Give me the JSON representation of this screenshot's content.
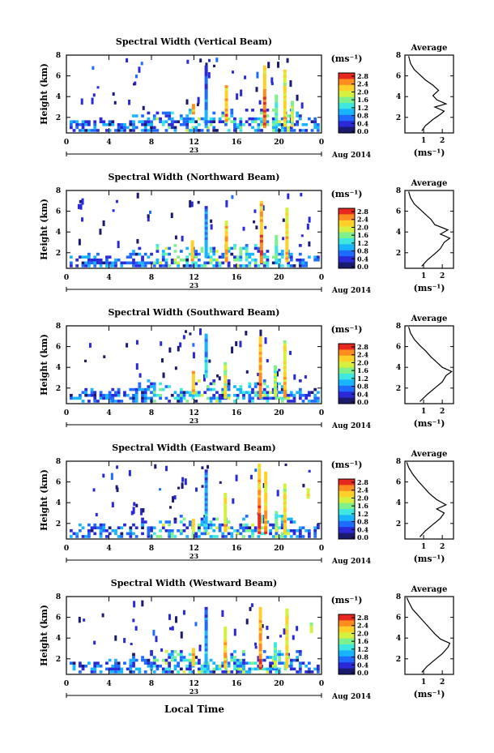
{
  "figure": {
    "xlabel": "Local Time",
    "date_label": "Aug 2014",
    "day_label": "23",
    "unit_label": "(ms⁻¹)",
    "average_title": "Average"
  },
  "colorbar": {
    "ticks": [
      "2.8",
      "2.4",
      "2.0",
      "1.6",
      "1.2",
      "0.8",
      "0.4",
      "0.0"
    ],
    "colors": [
      "#1a1a6e",
      "#2a2ad8",
      "#1e6cff",
      "#18b4ff",
      "#3ee8e0",
      "#7ef08c",
      "#d6f040",
      "#ffd028",
      "#ff8c1e",
      "#e8281e"
    ]
  },
  "chart_data": [
    {
      "type": "heatmap",
      "title": "Spectral Width (Vertical Beam)",
      "xlabel": "Local Time",
      "ylabel": "Height (km)",
      "xlim": [
        0,
        24
      ],
      "ylim": [
        0.5,
        8
      ],
      "xticks": [
        "0",
        "4",
        "8",
        "12",
        "16",
        "20",
        "0"
      ],
      "yticks": [
        "2",
        "4",
        "6",
        "8"
      ],
      "colorbar_label": "(ms⁻¹)",
      "colorbar_range": [
        0,
        2.8
      ],
      "date": "Aug 2014",
      "day": "23",
      "spikes": [
        [
          11.8,
          2.3,
          3.3,
          2.5
        ],
        [
          13.0,
          1.0,
          7.0,
          1.2
        ],
        [
          14.9,
          1.6,
          5.0,
          2.6
        ],
        [
          18.5,
          1.0,
          6.8,
          2.8
        ],
        [
          19.6,
          1.2,
          4.2,
          1.8
        ],
        [
          20.4,
          1.1,
          6.5,
          2.4
        ],
        [
          21.1,
          1.1,
          3.6,
          2.0
        ]
      ],
      "profile": {
        "title": "Average",
        "xlabel": "(ms⁻¹)",
        "xlim": [
          0,
          2.6
        ],
        "xticks": [
          "1",
          "2"
        ],
        "ylim": [
          0.5,
          8
        ],
        "yticks": [
          "2",
          "4",
          "6",
          "8"
        ],
        "points": [
          [
            0.9,
            0.7
          ],
          [
            1.1,
            1.2
          ],
          [
            1.5,
            1.8
          ],
          [
            1.9,
            2.3
          ],
          [
            2.1,
            2.6
          ],
          [
            1.6,
            3.0
          ],
          [
            2.2,
            3.3
          ],
          [
            1.7,
            3.7
          ],
          [
            1.5,
            4.1
          ],
          [
            1.8,
            4.6
          ],
          [
            1.5,
            5.1
          ],
          [
            1.1,
            5.6
          ],
          [
            0.8,
            6.1
          ],
          [
            0.5,
            6.6
          ],
          [
            0.3,
            7.2
          ],
          [
            0.2,
            7.9
          ]
        ]
      }
    },
    {
      "type": "heatmap",
      "title": "Spectral Width (Northward Beam)",
      "xlabel": "Local Time",
      "ylabel": "Height (km)",
      "xlim": [
        0,
        24
      ],
      "ylim": [
        0.5,
        8
      ],
      "xticks": [
        "0",
        "4",
        "8",
        "12",
        "16",
        "20",
        "0"
      ],
      "yticks": [
        "2",
        "4",
        "6",
        "8"
      ],
      "colorbar_label": "(ms⁻¹)",
      "colorbar_range": [
        0,
        2.8
      ],
      "date": "Aug 2014",
      "day": "23",
      "spikes": [
        [
          11.7,
          1.2,
          3.0,
          2.4
        ],
        [
          13.0,
          1.5,
          6.4,
          1.3
        ],
        [
          14.9,
          1.1,
          4.9,
          2.6
        ],
        [
          18.2,
          1.0,
          7.0,
          2.8
        ],
        [
          19.6,
          1.2,
          3.5,
          1.8
        ],
        [
          20.6,
          1.1,
          6.2,
          2.5
        ]
      ],
      "profile": {
        "title": "Average",
        "xlabel": "(ms⁻¹)",
        "xlim": [
          0,
          2.6
        ],
        "xticks": [
          "1",
          "2"
        ],
        "ylim": [
          0.5,
          8
        ],
        "yticks": [
          "2",
          "4",
          "6",
          "8"
        ],
        "points": [
          [
            0.9,
            0.7
          ],
          [
            1.2,
            1.3
          ],
          [
            1.6,
            1.9
          ],
          [
            1.9,
            2.4
          ],
          [
            2.1,
            3.0
          ],
          [
            2.4,
            3.4
          ],
          [
            1.9,
            3.8
          ],
          [
            2.3,
            4.2
          ],
          [
            1.6,
            4.7
          ],
          [
            1.4,
            5.2
          ],
          [
            1.1,
            5.7
          ],
          [
            0.8,
            6.2
          ],
          [
            0.5,
            6.7
          ],
          [
            0.3,
            7.3
          ],
          [
            0.2,
            7.9
          ]
        ]
      }
    },
    {
      "type": "heatmap",
      "title": "Spectral Width (Southward Beam)",
      "xlabel": "Local Time",
      "ylabel": "Height (km)",
      "xlim": [
        0,
        24
      ],
      "ylim": [
        0.5,
        8
      ],
      "xticks": [
        "0",
        "4",
        "8",
        "12",
        "16",
        "20",
        "0"
      ],
      "yticks": [
        "2",
        "4",
        "6",
        "8"
      ],
      "colorbar_label": "(ms⁻¹)",
      "colorbar_range": [
        0,
        2.8
      ],
      "date": "Aug 2014",
      "day": "23",
      "spikes": [
        [
          11.8,
          1.4,
          3.6,
          2.6
        ],
        [
          13.0,
          3.0,
          7.2,
          1.4
        ],
        [
          14.8,
          1.0,
          4.5,
          2.2
        ],
        [
          18.1,
          1.0,
          6.9,
          2.8
        ],
        [
          19.5,
          1.2,
          4.0,
          2.0
        ],
        [
          20.4,
          1.1,
          6.4,
          2.5
        ]
      ],
      "profile": {
        "title": "Average",
        "xlabel": "(ms⁻¹)",
        "xlim": [
          0,
          2.6
        ],
        "xticks": [
          "1",
          "2"
        ],
        "ylim": [
          0.5,
          8
        ],
        "yticks": [
          "2",
          "4",
          "6",
          "8"
        ],
        "points": [
          [
            0.8,
            0.7
          ],
          [
            1.2,
            1.4
          ],
          [
            1.6,
            2.0
          ],
          [
            2.0,
            2.6
          ],
          [
            2.2,
            3.2
          ],
          [
            2.5,
            3.6
          ],
          [
            2.0,
            4.0
          ],
          [
            1.7,
            4.5
          ],
          [
            1.4,
            5.0
          ],
          [
            1.1,
            5.6
          ],
          [
            0.8,
            6.1
          ],
          [
            0.5,
            6.7
          ],
          [
            0.3,
            7.3
          ],
          [
            0.2,
            7.9
          ]
        ]
      }
    },
    {
      "type": "heatmap",
      "title": "Spectral Width (Eastward Beam)",
      "xlabel": "Local Time",
      "ylabel": "Height (km)",
      "xlim": [
        0,
        24
      ],
      "ylim": [
        0.5,
        8
      ],
      "xticks": [
        "0",
        "4",
        "8",
        "12",
        "16",
        "20",
        "0"
      ],
      "yticks": [
        "2",
        "4",
        "6",
        "8"
      ],
      "colorbar_label": "(ms⁻¹)",
      "colorbar_range": [
        0,
        2.8
      ],
      "date": "Aug 2014",
      "day": "23",
      "spikes": [
        [
          11.8,
          1.2,
          2.4,
          2.2
        ],
        [
          13.0,
          1.2,
          7.0,
          1.4
        ],
        [
          14.8,
          1.2,
          4.8,
          2.4
        ],
        [
          18.0,
          1.0,
          7.6,
          2.8
        ],
        [
          18.6,
          1.0,
          6.8,
          2.6
        ],
        [
          19.6,
          1.2,
          3.2,
          1.9
        ],
        [
          20.4,
          1.1,
          5.8,
          2.4
        ],
        [
          22.6,
          4.4,
          5.3,
          2.2
        ]
      ],
      "profile": {
        "title": "Average",
        "xlabel": "(ms⁻¹)",
        "xlim": [
          0,
          2.6
        ],
        "xticks": [
          "1",
          "2"
        ],
        "ylim": [
          0.5,
          8
        ],
        "yticks": [
          "2",
          "4",
          "6",
          "8"
        ],
        "points": [
          [
            0.8,
            0.7
          ],
          [
            1.1,
            1.3
          ],
          [
            1.5,
            1.9
          ],
          [
            1.9,
            2.5
          ],
          [
            2.1,
            3.0
          ],
          [
            1.7,
            3.4
          ],
          [
            2.2,
            3.8
          ],
          [
            1.7,
            4.3
          ],
          [
            1.3,
            4.9
          ],
          [
            1.0,
            5.5
          ],
          [
            0.7,
            6.1
          ],
          [
            0.4,
            6.8
          ],
          [
            0.2,
            7.4
          ],
          [
            0.1,
            7.9
          ]
        ]
      }
    },
    {
      "type": "heatmap",
      "title": "Spectral Width (Westward Beam)",
      "xlabel": "Local Time",
      "ylabel": "Height (km)",
      "xlim": [
        0,
        24
      ],
      "ylim": [
        0.5,
        8
      ],
      "xticks": [
        "0",
        "4",
        "8",
        "12",
        "16",
        "20",
        "0"
      ],
      "yticks": [
        "2",
        "4",
        "6",
        "8"
      ],
      "colorbar_label": "(ms⁻¹)",
      "colorbar_range": [
        0,
        2.8
      ],
      "date": "Aug 2014",
      "day": "23",
      "spikes": [
        [
          11.8,
          1.3,
          3.0,
          2.4
        ],
        [
          13.0,
          1.5,
          7.0,
          1.3
        ],
        [
          14.8,
          1.1,
          5.0,
          2.5
        ],
        [
          18.1,
          1.0,
          7.0,
          2.8
        ],
        [
          19.5,
          1.1,
          3.5,
          1.9
        ],
        [
          20.6,
          1.1,
          6.8,
          2.5
        ],
        [
          22.9,
          4.5,
          5.3,
          2.0
        ]
      ],
      "profile": {
        "title": "Average",
        "xlabel": "(ms⁻¹)",
        "xlim": [
          0,
          2.6
        ],
        "xticks": [
          "1",
          "2"
        ],
        "ylim": [
          0.5,
          8
        ],
        "yticks": [
          "2",
          "4",
          "6",
          "8"
        ],
        "points": [
          [
            0.9,
            0.7
          ],
          [
            1.2,
            1.3
          ],
          [
            1.6,
            1.9
          ],
          [
            2.0,
            2.5
          ],
          [
            2.3,
            3.1
          ],
          [
            2.4,
            3.5
          ],
          [
            1.9,
            3.9
          ],
          [
            1.6,
            4.4
          ],
          [
            1.3,
            5.0
          ],
          [
            1.0,
            5.6
          ],
          [
            0.7,
            6.2
          ],
          [
            0.4,
            6.8
          ],
          [
            0.2,
            7.5
          ],
          [
            0.1,
            7.9
          ]
        ]
      }
    }
  ]
}
